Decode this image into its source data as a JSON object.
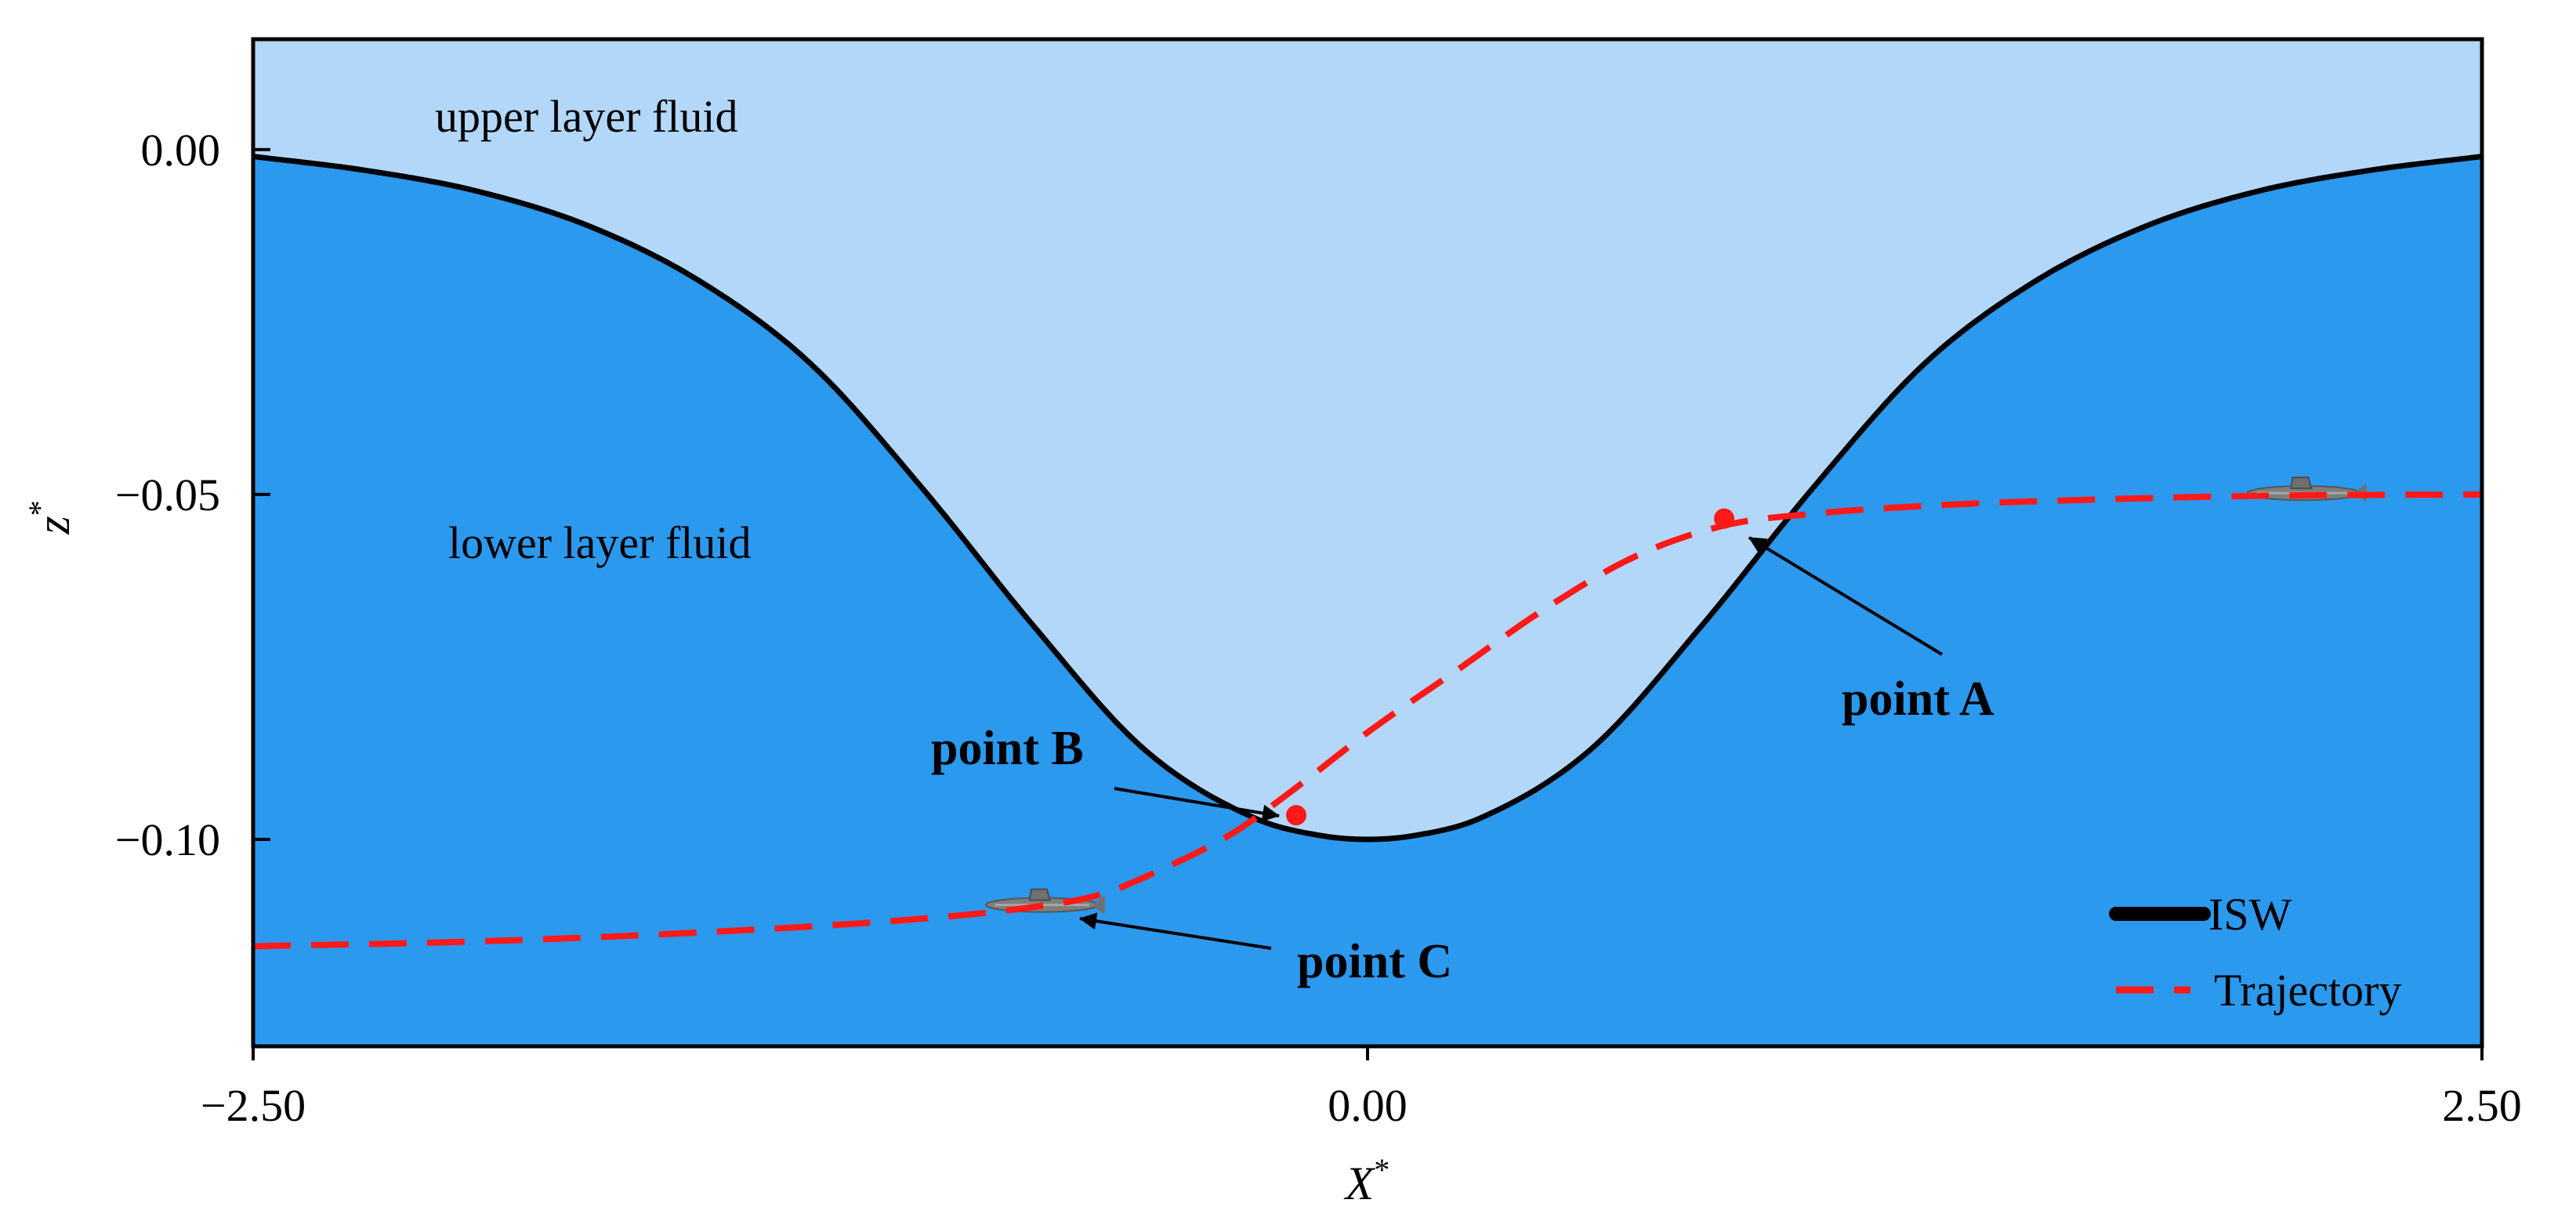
{
  "chart_data": {
    "type": "line",
    "xlabel": "X",
    "xlabel_sup": "*",
    "ylabel": "z",
    "ylabel_sup": "*",
    "xlim": [
      -2.5,
      2.5
    ],
    "ylim": [
      -0.13,
      0.016
    ],
    "xticks": [
      -2.5,
      0.0,
      2.5
    ],
    "xtick_labels": [
      "−2.50",
      "0.00",
      "2.50"
    ],
    "yticks": [
      0.0,
      -0.05,
      -0.1
    ],
    "ytick_labels": [
      "0.00",
      "−0.05",
      "−0.10"
    ],
    "grid": false,
    "legend_position": "bottom-right",
    "region_labels": {
      "upper": "upper layer fluid",
      "lower": "lower layer fluid"
    },
    "colors": {
      "upper_fluid": "#b3d7f9",
      "lower_fluid": "#2b99ee",
      "isw": "#000000",
      "trajectory": "#ff1a1a"
    },
    "series": [
      {
        "name": "ISW",
        "style": "solid",
        "x": [
          -2.5,
          -2.25,
          -2.0,
          -1.75,
          -1.5,
          -1.25,
          -1.0,
          -0.75,
          -0.5,
          -0.25,
          -0.1,
          0.0,
          0.1,
          0.25,
          0.5,
          0.75,
          1.0,
          1.25,
          1.5,
          1.75,
          2.0,
          2.25,
          2.5
        ],
        "y": [
          -0.001,
          -0.003,
          -0.006,
          -0.011,
          -0.019,
          -0.031,
          -0.049,
          -0.069,
          -0.087,
          -0.097,
          -0.0995,
          -0.1,
          -0.0995,
          -0.097,
          -0.087,
          -0.069,
          -0.049,
          -0.031,
          -0.019,
          -0.011,
          -0.006,
          -0.003,
          -0.001
        ]
      },
      {
        "name": "Trajectory",
        "style": "dashed",
        "x": [
          -2.5,
          -2.0,
          -1.5,
          -1.0,
          -0.75,
          -0.6,
          -0.45,
          -0.3,
          -0.15,
          0.0,
          0.2,
          0.4,
          0.6,
          0.8,
          1.0,
          1.3,
          1.6,
          2.0,
          2.5
        ],
        "y": [
          -0.1155,
          -0.1148,
          -0.1135,
          -0.1115,
          -0.1098,
          -0.108,
          -0.104,
          -0.099,
          -0.092,
          -0.0845,
          -0.0755,
          -0.0665,
          -0.059,
          -0.0545,
          -0.0528,
          -0.0515,
          -0.0508,
          -0.0502,
          -0.05
        ]
      }
    ],
    "annotations": [
      {
        "label": "point A",
        "x": 0.8,
        "y": -0.0535,
        "marker": true
      },
      {
        "label": "point B",
        "x": -0.16,
        "y": -0.0965,
        "marker": true
      },
      {
        "label": "point C",
        "x": -0.62,
        "y": -0.1095,
        "marker": false
      }
    ],
    "submarines": [
      {
        "x": -0.73,
        "y": -0.1095
      },
      {
        "x": 2.1,
        "y": -0.0498
      }
    ]
  }
}
